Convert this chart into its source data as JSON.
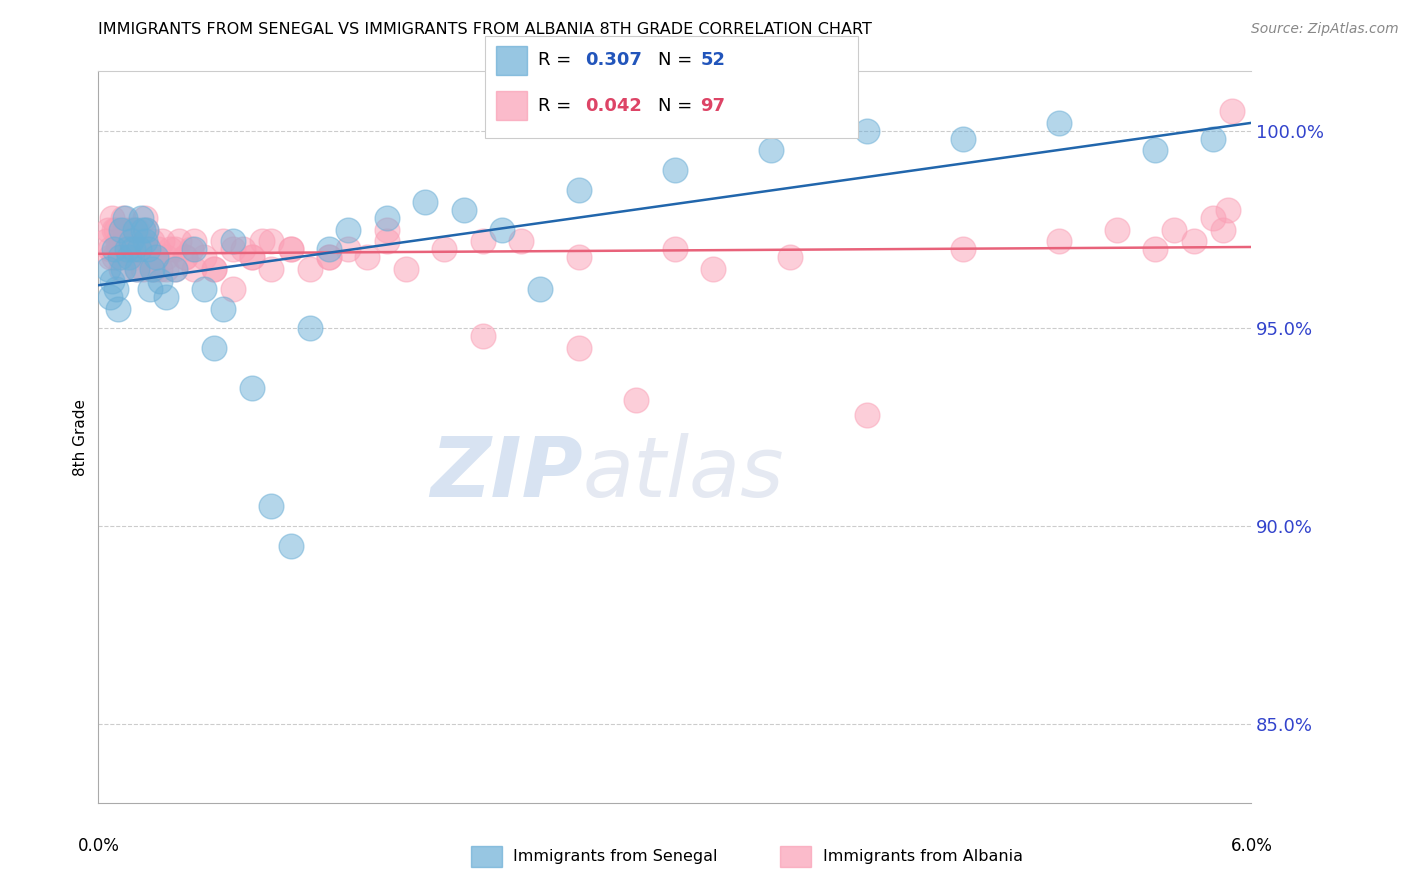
{
  "title": "IMMIGRANTS FROM SENEGAL VS IMMIGRANTS FROM ALBANIA 8TH GRADE CORRELATION CHART",
  "source": "Source: ZipAtlas.com",
  "ylabel": "8th Grade",
  "xmin": 0.0,
  "xmax": 6.0,
  "ymin": 83.0,
  "ymax": 101.5,
  "yticks": [
    85.0,
    90.0,
    95.0,
    100.0
  ],
  "right_ytick_labels": [
    "85.0%",
    "90.0%",
    "95.0%",
    "100.0%"
  ],
  "senegal_color": "#6baed6",
  "albania_color": "#fa9fb5",
  "senegal_line_color": "#2166ac",
  "albania_line_color": "#e8627a",
  "watermark_zip": "ZIP",
  "watermark_atlas": "atlas",
  "senegal_x": [
    0.05,
    0.06,
    0.07,
    0.08,
    0.09,
    0.1,
    0.11,
    0.12,
    0.13,
    0.14,
    0.15,
    0.16,
    0.17,
    0.18,
    0.19,
    0.2,
    0.21,
    0.22,
    0.23,
    0.24,
    0.25,
    0.26,
    0.27,
    0.28,
    0.3,
    0.32,
    0.35,
    0.4,
    0.5,
    0.55,
    0.6,
    0.65,
    0.7,
    0.8,
    0.9,
    1.0,
    1.1,
    1.2,
    1.3,
    1.5,
    1.7,
    1.9,
    2.1,
    2.3,
    2.5,
    3.0,
    3.5,
    4.0,
    4.5,
    5.0,
    5.5,
    5.8
  ],
  "senegal_y": [
    96.5,
    95.8,
    96.2,
    97.0,
    96.0,
    95.5,
    96.8,
    97.5,
    96.5,
    97.8,
    97.0,
    96.8,
    97.2,
    97.0,
    97.5,
    96.5,
    97.0,
    97.8,
    97.5,
    97.2,
    97.5,
    97.0,
    96.0,
    96.5,
    96.8,
    96.2,
    95.8,
    96.5,
    97.0,
    96.0,
    94.5,
    95.5,
    97.2,
    93.5,
    90.5,
    89.5,
    95.0,
    97.0,
    97.5,
    97.8,
    98.2,
    98.0,
    97.5,
    96.0,
    98.5,
    99.0,
    99.5,
    100.0,
    99.8,
    100.2,
    99.5,
    99.8
  ],
  "albania_x": [
    0.04,
    0.05,
    0.06,
    0.07,
    0.08,
    0.09,
    0.1,
    0.11,
    0.12,
    0.13,
    0.14,
    0.15,
    0.16,
    0.17,
    0.18,
    0.19,
    0.2,
    0.21,
    0.22,
    0.23,
    0.24,
    0.25,
    0.26,
    0.27,
    0.28,
    0.29,
    0.3,
    0.31,
    0.32,
    0.33,
    0.35,
    0.37,
    0.4,
    0.42,
    0.45,
    0.48,
    0.5,
    0.55,
    0.6,
    0.65,
    0.7,
    0.75,
    0.8,
    0.85,
    0.9,
    1.0,
    1.1,
    1.2,
    1.3,
    1.4,
    1.5,
    1.6,
    1.8,
    2.0,
    2.2,
    2.5,
    2.8,
    3.2,
    3.6,
    4.0,
    4.5,
    5.0,
    5.3,
    5.5,
    5.6,
    5.7,
    5.8,
    5.85,
    5.88,
    5.9,
    0.06,
    0.08,
    0.1,
    0.12,
    0.14,
    0.16,
    0.18,
    0.2,
    0.22,
    0.24,
    0.26,
    0.28,
    0.3,
    0.35,
    0.4,
    0.45,
    0.5,
    0.6,
    0.7,
    0.8,
    0.9,
    1.0,
    1.2,
    1.5,
    2.0,
    2.5,
    3.0
  ],
  "albania_y": [
    97.2,
    97.5,
    97.0,
    97.8,
    96.8,
    97.5,
    97.2,
    97.0,
    96.5,
    97.8,
    97.5,
    97.0,
    97.2,
    97.5,
    97.0,
    96.8,
    97.5,
    97.2,
    97.0,
    96.5,
    97.8,
    97.5,
    97.0,
    96.8,
    97.2,
    96.5,
    96.8,
    97.0,
    96.5,
    97.2,
    96.8,
    97.0,
    96.5,
    97.2,
    96.8,
    97.0,
    96.5,
    96.8,
    96.5,
    97.2,
    96.0,
    97.0,
    96.8,
    97.2,
    96.5,
    97.0,
    96.5,
    96.8,
    97.0,
    96.8,
    97.2,
    96.5,
    97.0,
    94.8,
    97.2,
    94.5,
    93.2,
    96.5,
    96.8,
    92.8,
    97.0,
    97.2,
    97.5,
    97.0,
    97.5,
    97.2,
    97.8,
    97.5,
    98.0,
    100.5,
    96.8,
    97.5,
    97.0,
    96.8,
    97.2,
    97.0,
    97.5,
    96.5,
    97.2,
    96.8,
    97.0,
    96.5,
    96.8,
    96.5,
    97.0,
    96.8,
    97.2,
    96.5,
    97.0,
    96.8,
    97.2,
    97.0,
    96.8,
    97.5,
    97.2,
    96.8,
    97.0
  ]
}
